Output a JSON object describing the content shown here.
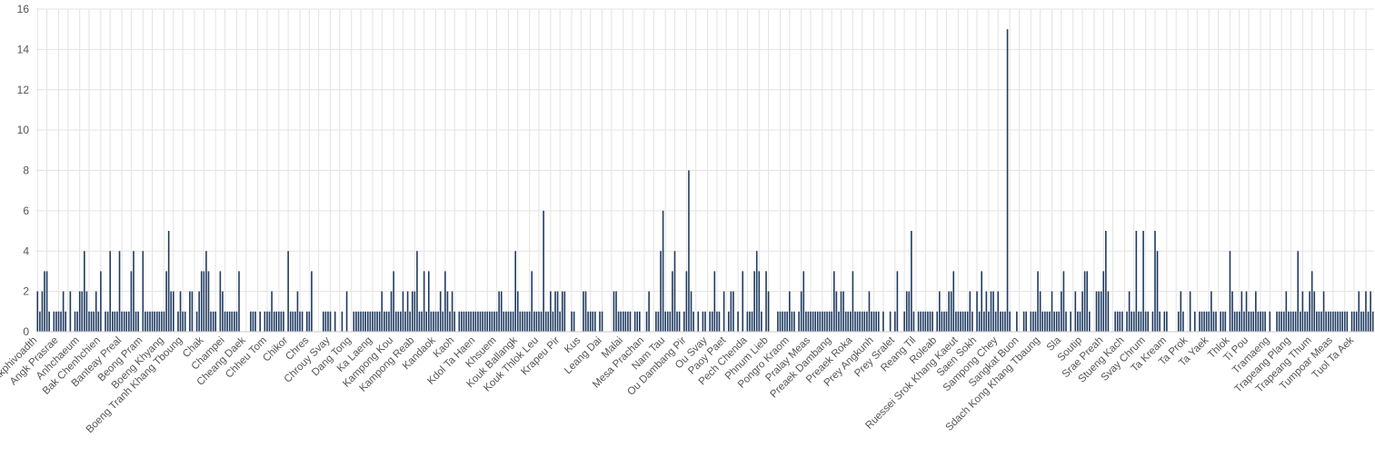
{
  "chart_data": {
    "type": "bar",
    "ylim": [
      0,
      16
    ],
    "yticks": [
      0,
      2,
      4,
      6,
      8,
      10,
      12,
      14,
      16
    ],
    "grid": true,
    "bar_color": "#1f3a60",
    "tick_labels": [
      "Akphivoadth",
      "Angk Prasrae",
      "Anhchaeum",
      "Bak Chenhchien",
      "Banteay Preal",
      "Beong Pram",
      "Boeng Khyang",
      "Boeng Tranh Khang Tboung",
      "Chak",
      "Champei",
      "Cheang Daek",
      "Chheu Tom",
      "Chikor",
      "Chres",
      "Chrouy Svay",
      "Dang Tong",
      "Ka Laeng",
      "Kampong Kou",
      "Kampong Reab",
      "Kandaok",
      "Kaoh",
      "Kdol Ta Haen",
      "Khsuem",
      "Kouk Ballangk",
      "Kouk Thlok Leu",
      "Krapeu Pir",
      "Kus",
      "Leang Dai",
      "Malai",
      "Mesa Prachan",
      "Nam Tau",
      "Ou Dambang Pir",
      "Ou Svay",
      "Paoy Paet",
      "Pech Chenda",
      "Phnum Lieb",
      "Pongro Kraom",
      "Pralay Meas",
      "Preaek Dambang",
      "Preaek Roka",
      "Prey Angkunh",
      "Prey Sralet",
      "Reang Til",
      "Roleab",
      "Ruessei Srok Khang Kaeut",
      "Saen Sokh",
      "Sampong Chey",
      "Sangkat Buon",
      "Sdach Kong Khang Tbaung",
      "Sla",
      "Soutip",
      "Srae Preah",
      "Stueng Kach",
      "Svay Chrum",
      "Ta Kream",
      "Ta Prok",
      "Ta Yaek",
      "Thlok",
      "Ti Pou",
      "Tramaeng",
      "Trapeang Plang",
      "Trapeang Thum",
      "Tumpoar Meas",
      "Tuol Ta Aek"
    ],
    "values": [
      2,
      1,
      2,
      3,
      3,
      1,
      0,
      1,
      1,
      1,
      1,
      2,
      1,
      0,
      2,
      0,
      1,
      1,
      2,
      2,
      4,
      2,
      1,
      1,
      1,
      2,
      1,
      3,
      0,
      1,
      1,
      4,
      1,
      1,
      1,
      4,
      1,
      1,
      1,
      1,
      3,
      4,
      1,
      1,
      0,
      4,
      1,
      1,
      1,
      1,
      1,
      1,
      1,
      1,
      1,
      3,
      5,
      2,
      2,
      0,
      1,
      2,
      1,
      1,
      0,
      2,
      2,
      0,
      1,
      2,
      3,
      3,
      4,
      3,
      1,
      1,
      1,
      0,
      3,
      2,
      1,
      1,
      1,
      1,
      1,
      1,
      3,
      0,
      0,
      0,
      0,
      1,
      1,
      1,
      0,
      1,
      0,
      1,
      1,
      1,
      2,
      1,
      1,
      1,
      1,
      1,
      0,
      4,
      1,
      1,
      1,
      2,
      1,
      1,
      0,
      1,
      1,
      3,
      0,
      0,
      0,
      0,
      1,
      1,
      1,
      1,
      0,
      1,
      0,
      0,
      1,
      0,
      2,
      0,
      0,
      1,
      1,
      1,
      1,
      1,
      1,
      1,
      1,
      1,
      1,
      1,
      1,
      2,
      1,
      1,
      1,
      2,
      3,
      1,
      1,
      1,
      2,
      1,
      2,
      1,
      2,
      2,
      4,
      1,
      1,
      3,
      1,
      3,
      1,
      1,
      1,
      1,
      2,
      1,
      3,
      2,
      1,
      2,
      1,
      0,
      1,
      1,
      1,
      1,
      1,
      1,
      1,
      1,
      1,
      1,
      1,
      1,
      1,
      1,
      1,
      1,
      1,
      2,
      2,
      1,
      1,
      1,
      1,
      1,
      4,
      2,
      1,
      1,
      1,
      1,
      1,
      3,
      1,
      1,
      1,
      1,
      6,
      1,
      1,
      2,
      1,
      2,
      2,
      1,
      2,
      2,
      0,
      0,
      1,
      1,
      0,
      0,
      0,
      2,
      2,
      1,
      1,
      1,
      1,
      0,
      1,
      1,
      0,
      0,
      0,
      0,
      2,
      2,
      1,
      1,
      1,
      1,
      1,
      1,
      0,
      1,
      1,
      1,
      0,
      0,
      1,
      2,
      0,
      0,
      1,
      1,
      4,
      6,
      1,
      1,
      1,
      3,
      4,
      1,
      1,
      0,
      1,
      3,
      8,
      2,
      1,
      0,
      1,
      0,
      1,
      1,
      0,
      1,
      1,
      3,
      1,
      1,
      0,
      2,
      0,
      1,
      2,
      2,
      0,
      1,
      0,
      3,
      0,
      1,
      1,
      1,
      3,
      4,
      3,
      1,
      0,
      3,
      2,
      0,
      0,
      0,
      1,
      1,
      1,
      1,
      1,
      2,
      1,
      1,
      0,
      1,
      2,
      3,
      1,
      1,
      1,
      1,
      1,
      1,
      1,
      1,
      1,
      1,
      1,
      1,
      3,
      2,
      1,
      2,
      2,
      1,
      1,
      1,
      3,
      1,
      1,
      1,
      1,
      1,
      1,
      2,
      1,
      1,
      1,
      1,
      0,
      1,
      0,
      0,
      1,
      0,
      1,
      3,
      0,
      0,
      1,
      2,
      2,
      5,
      1,
      0,
      1,
      1,
      1,
      1,
      1,
      1,
      1,
      0,
      1,
      2,
      1,
      1,
      1,
      2,
      2,
      3,
      1,
      1,
      1,
      1,
      1,
      1,
      2,
      1,
      0,
      2,
      1,
      3,
      1,
      2,
      1,
      2,
      2,
      1,
      2,
      1,
      1,
      1,
      15,
      1,
      0,
      0,
      1,
      0,
      0,
      1,
      1,
      0,
      1,
      1,
      1,
      3,
      2,
      1,
      1,
      1,
      1,
      2,
      1,
      1,
      1,
      2,
      3,
      1,
      0,
      1,
      0,
      2,
      1,
      1,
      2,
      3,
      3,
      1,
      0,
      0,
      2,
      2,
      2,
      3,
      5,
      2,
      0,
      0,
      1,
      1,
      1,
      1,
      0,
      1,
      2,
      1,
      1,
      5,
      1,
      1,
      5,
      1,
      1,
      0,
      1,
      5,
      4,
      1,
      0,
      1,
      1,
      0,
      0,
      0,
      0,
      1,
      2,
      1,
      0,
      0,
      2,
      0,
      1,
      0,
      1,
      1,
      1,
      1,
      1,
      2,
      1,
      1,
      0,
      1,
      1,
      1,
      0,
      4,
      2,
      1,
      1,
      1,
      2,
      1,
      2,
      1,
      1,
      1,
      2,
      1,
      1,
      1,
      1,
      0,
      1,
      0,
      0,
      1,
      1,
      1,
      1,
      2,
      1,
      1,
      1,
      1,
      4,
      1,
      2,
      1,
      1,
      2,
      3,
      2,
      1,
      1,
      1,
      2,
      1,
      1,
      1,
      1,
      1,
      1,
      1,
      1,
      1,
      1,
      0,
      1,
      1,
      1,
      2,
      1,
      1,
      2,
      1,
      2,
      1
    ]
  }
}
